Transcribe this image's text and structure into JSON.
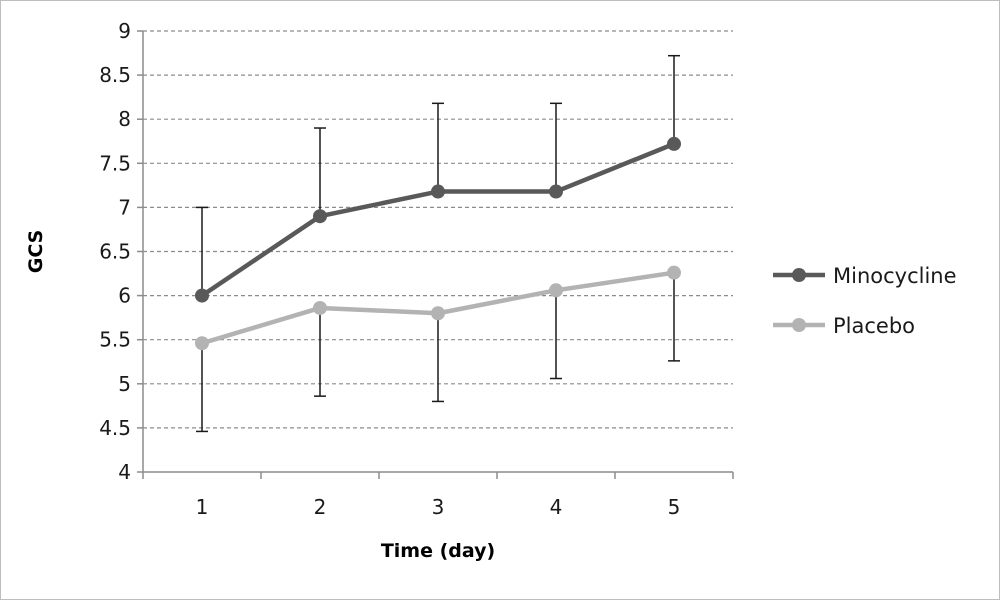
{
  "chart_data": {
    "type": "line",
    "title": "",
    "xlabel": "Time (day)",
    "ylabel": "GCS",
    "x": [
      1,
      2,
      3,
      4,
      5
    ],
    "x_tick_labels": [
      "1",
      "2",
      "3",
      "4",
      "5"
    ],
    "ylim": [
      4,
      9
    ],
    "y_ticks": [
      4,
      4.5,
      5,
      5.5,
      6,
      6.5,
      7,
      7.5,
      8,
      8.5,
      9
    ],
    "y_tick_labels": [
      "4",
      "4.5",
      "5",
      "5.5",
      "6",
      "6.5",
      "7",
      "7.5",
      "8",
      "8.5",
      "9"
    ],
    "grid": "horizontal dashed",
    "legend_position": "right",
    "series": [
      {
        "name": "Minocycline",
        "color": "#595959",
        "values": [
          6.0,
          6.9,
          7.18,
          7.18,
          7.72
        ],
        "error_upper": [
          7.0,
          7.9,
          8.18,
          8.18,
          8.72
        ],
        "error_lower": null
      },
      {
        "name": "Placebo",
        "color": "#b3b3b3",
        "values": [
          5.46,
          5.86,
          5.8,
          6.06,
          6.26
        ],
        "error_upper": null,
        "error_lower": [
          4.46,
          4.86,
          4.8,
          5.06,
          5.26
        ]
      }
    ]
  }
}
